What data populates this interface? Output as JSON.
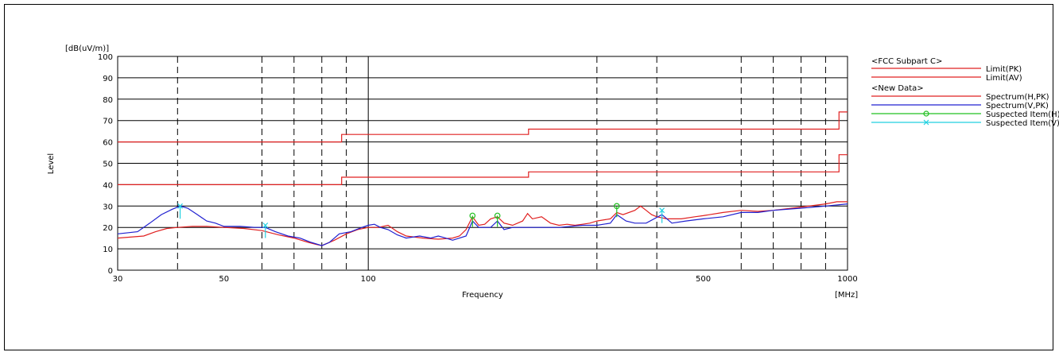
{
  "chart_data": {
    "type": "line",
    "title": "",
    "xlabel": "Frequency",
    "ylabel": "Level",
    "y_unit": "[dB(uV/m)]",
    "x_unit": "[MHz]",
    "x_scale": "log",
    "xlim": [
      30,
      1000
    ],
    "ylim": [
      0,
      100
    ],
    "x_tick_labels": [
      {
        "value": 30,
        "label": "30"
      },
      {
        "value": 50,
        "label": "50"
      },
      {
        "value": 100,
        "label": "100"
      },
      {
        "value": 500,
        "label": "500"
      },
      {
        "value": 1000,
        "label": "1000"
      }
    ],
    "x_dashed_gridlines": [
      40,
      60,
      70,
      80,
      90,
      300,
      400,
      600,
      700,
      800,
      900
    ],
    "x_solid_gridlines": [
      100
    ],
    "y_ticks": [
      0,
      10,
      20,
      30,
      40,
      50,
      60,
      70,
      80,
      90,
      100
    ],
    "grid": true,
    "legend_position": "right",
    "legend": [
      {
        "kind": "header",
        "label": "<FCC Subpart C>"
      },
      {
        "kind": "line",
        "label": "Limit(PK)",
        "color": "#e02020"
      },
      {
        "kind": "line",
        "label": "Limit(AV)",
        "color": "#e02020"
      },
      {
        "kind": "header",
        "label": "<New Data>"
      },
      {
        "kind": "line",
        "label": "Spectrum(H,PK)",
        "color": "#e02020"
      },
      {
        "kind": "line",
        "label": "Spectrum(V,PK)",
        "color": "#2020d0"
      },
      {
        "kind": "circle",
        "label": "Suspected Item(H)",
        "color": "#20c020"
      },
      {
        "kind": "cross",
        "label": "Suspected Item(V)",
        "color": "#20d0e0"
      }
    ],
    "series": [
      {
        "name": "Limit(PK)",
        "color": "#e02020",
        "step": true,
        "points": [
          [
            30,
            60
          ],
          [
            88,
            60
          ],
          [
            88,
            63.5
          ],
          [
            216,
            63.5
          ],
          [
            216,
            66
          ],
          [
            960,
            66
          ],
          [
            960,
            74
          ],
          [
            1000,
            74
          ]
        ]
      },
      {
        "name": "Limit(AV)",
        "color": "#e02020",
        "step": true,
        "points": [
          [
            30,
            40
          ],
          [
            88,
            40
          ],
          [
            88,
            43.5
          ],
          [
            216,
            43.5
          ],
          [
            216,
            46
          ],
          [
            960,
            46
          ],
          [
            960,
            54
          ],
          [
            1000,
            54
          ]
        ]
      },
      {
        "name": "Spectrum(H,PK)",
        "color": "#e02020",
        "points": [
          [
            30,
            15
          ],
          [
            34,
            16
          ],
          [
            36,
            18
          ],
          [
            38,
            19.5
          ],
          [
            40,
            20
          ],
          [
            43,
            20.5
          ],
          [
            46,
            20.5
          ],
          [
            50,
            20
          ],
          [
            55,
            19.5
          ],
          [
            60,
            18.5
          ],
          [
            65,
            16.5
          ],
          [
            70,
            15
          ],
          [
            75,
            13
          ],
          [
            78,
            12
          ],
          [
            80,
            11.5
          ],
          [
            85,
            14
          ],
          [
            90,
            17
          ],
          [
            95,
            19
          ],
          [
            100,
            20
          ],
          [
            105,
            20
          ],
          [
            110,
            21
          ],
          [
            115,
            18
          ],
          [
            120,
            16
          ],
          [
            130,
            15
          ],
          [
            140,
            14.5
          ],
          [
            150,
            15
          ],
          [
            155,
            16
          ],
          [
            160,
            19
          ],
          [
            165,
            25
          ],
          [
            170,
            21
          ],
          [
            175,
            21.5
          ],
          [
            180,
            24
          ],
          [
            186,
            25
          ],
          [
            192,
            22
          ],
          [
            200,
            21
          ],
          [
            210,
            23
          ],
          [
            215,
            26.5
          ],
          [
            220,
            24
          ],
          [
            230,
            25
          ],
          [
            240,
            22
          ],
          [
            250,
            21
          ],
          [
            260,
            21.5
          ],
          [
            270,
            21
          ],
          [
            280,
            21.5
          ],
          [
            290,
            22
          ],
          [
            300,
            23
          ],
          [
            320,
            24
          ],
          [
            330,
            27
          ],
          [
            340,
            26
          ],
          [
            360,
            28
          ],
          [
            370,
            30
          ],
          [
            380,
            28
          ],
          [
            390,
            26
          ],
          [
            400,
            25
          ],
          [
            420,
            24
          ],
          [
            450,
            24
          ],
          [
            480,
            25
          ],
          [
            500,
            25.5
          ],
          [
            550,
            27
          ],
          [
            600,
            28
          ],
          [
            650,
            27.5
          ],
          [
            700,
            28
          ],
          [
            800,
            29.5
          ],
          [
            900,
            31
          ],
          [
            950,
            32
          ],
          [
            1000,
            32
          ]
        ]
      },
      {
        "name": "Spectrum(V,PK)",
        "color": "#2020d0",
        "points": [
          [
            30,
            17
          ],
          [
            33,
            18
          ],
          [
            35,
            22
          ],
          [
            37,
            26
          ],
          [
            39,
            28.5
          ],
          [
            40.5,
            30
          ],
          [
            42,
            29
          ],
          [
            44,
            26
          ],
          [
            46,
            23
          ],
          [
            48,
            22
          ],
          [
            50,
            20.5
          ],
          [
            54,
            20.5
          ],
          [
            58,
            20
          ],
          [
            61,
            20
          ],
          [
            64,
            18
          ],
          [
            68,
            16
          ],
          [
            72,
            15
          ],
          [
            76,
            13
          ],
          [
            80,
            11.5
          ],
          [
            83,
            13
          ],
          [
            87,
            17
          ],
          [
            92,
            18
          ],
          [
            97,
            20
          ],
          [
            100,
            21
          ],
          [
            103,
            21.5
          ],
          [
            106,
            20
          ],
          [
            110,
            19
          ],
          [
            115,
            16.5
          ],
          [
            120,
            15
          ],
          [
            128,
            16
          ],
          [
            135,
            15
          ],
          [
            140,
            16
          ],
          [
            145,
            15
          ],
          [
            150,
            14
          ],
          [
            160,
            16
          ],
          [
            165,
            23
          ],
          [
            170,
            20
          ],
          [
            180,
            20
          ],
          [
            186,
            23
          ],
          [
            192,
            19
          ],
          [
            200,
            20
          ],
          [
            220,
            20
          ],
          [
            250,
            20
          ],
          [
            280,
            21
          ],
          [
            300,
            21
          ],
          [
            320,
            22
          ],
          [
            330,
            26
          ],
          [
            345,
            23
          ],
          [
            360,
            22
          ],
          [
            380,
            22
          ],
          [
            410,
            26
          ],
          [
            430,
            22
          ],
          [
            460,
            23
          ],
          [
            500,
            24
          ],
          [
            550,
            25
          ],
          [
            600,
            27
          ],
          [
            650,
            27
          ],
          [
            700,
            28
          ],
          [
            800,
            29
          ],
          [
            900,
            30
          ],
          [
            1000,
            31
          ]
        ]
      },
      {
        "name": "Suspected Item(H)",
        "color": "#20c020",
        "marker": "circle",
        "points": [
          [
            165,
            25.5
          ],
          [
            186,
            25.5
          ],
          [
            330,
            30
          ]
        ]
      },
      {
        "name": "Suspected Item(V)",
        "color": "#20d0e0",
        "marker": "cross",
        "points": [
          [
            40.5,
            30
          ],
          [
            61,
            21
          ],
          [
            410,
            28
          ]
        ]
      }
    ]
  }
}
